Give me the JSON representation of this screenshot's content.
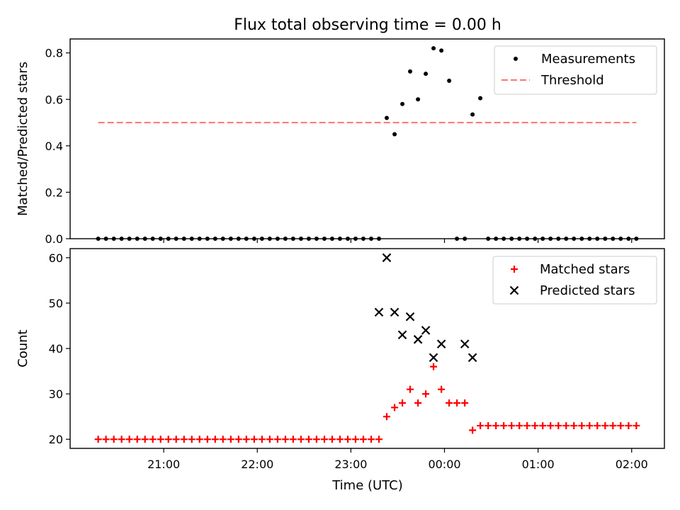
{
  "title": "Flux total observing time = 0.00 h",
  "xlabel": "Time (UTC)",
  "chart_data": [
    {
      "type": "scatter",
      "ylabel": "Matched/Predicted stars",
      "ylim": [
        0,
        0.86
      ],
      "yticks": [
        0.0,
        0.2,
        0.4,
        0.6,
        0.8
      ],
      "ytick_labels": [
        "0.0",
        "0.2",
        "0.4",
        "0.6",
        "0.8"
      ],
      "x_unit": "hours since 21:00 UTC (display only)",
      "xlim": [
        -1.0,
        5.35
      ],
      "legend": {
        "position": "top-right"
      },
      "series": [
        {
          "name": "Measurements",
          "style": "dot",
          "color": "#000000",
          "x": [
            -0.7,
            -0.617,
            -0.533,
            -0.45,
            -0.367,
            -0.283,
            -0.2,
            -0.117,
            -0.033,
            0.05,
            0.133,
            0.217,
            0.3,
            0.383,
            0.467,
            0.55,
            0.633,
            0.717,
            0.8,
            0.883,
            0.967,
            1.05,
            1.133,
            1.217,
            1.3,
            1.383,
            1.467,
            1.55,
            1.633,
            1.717,
            1.8,
            1.883,
            1.967,
            2.05,
            2.133,
            2.217,
            2.3,
            2.383,
            2.467,
            2.55,
            2.633,
            2.717,
            2.8,
            2.883,
            2.967,
            3.05,
            3.133,
            3.217,
            3.3,
            3.383,
            3.467,
            3.55,
            3.633,
            3.717,
            3.8,
            3.883,
            3.967,
            4.05,
            4.133,
            4.217,
            4.3,
            4.383,
            4.467,
            4.55,
            4.633,
            4.717,
            4.8,
            4.883,
            4.967,
            5.05
          ],
          "y": [
            0,
            0,
            0,
            0,
            0,
            0,
            0,
            0,
            0,
            0,
            0,
            0,
            0,
            0,
            0,
            0,
            0,
            0,
            0,
            0,
            0,
            0,
            0,
            0,
            0,
            0,
            0,
            0,
            0,
            0,
            0,
            0,
            0,
            0,
            0,
            0,
            0,
            0.52,
            0.45,
            0.58,
            0.72,
            0.6,
            0.71,
            0.82,
            0.81,
            0.68,
            0,
            0,
            0.535,
            0.605,
            0,
            0,
            0,
            0,
            0,
            0,
            0,
            0,
            0,
            0,
            0,
            0,
            0,
            0,
            0,
            0,
            0,
            0,
            0,
            0
          ]
        },
        {
          "name": "Threshold",
          "style": "dashed-line",
          "color": "#ff7a7a",
          "x": [
            -0.7,
            5.05
          ],
          "y": [
            0.5,
            0.5
          ]
        }
      ]
    },
    {
      "type": "scatter",
      "ylabel": "Count",
      "ylim": [
        18,
        62
      ],
      "yticks": [
        20,
        30,
        40,
        50,
        60
      ],
      "ytick_labels": [
        "20",
        "30",
        "40",
        "50",
        "60"
      ],
      "xticks": [
        0,
        1,
        2,
        3,
        4,
        5
      ],
      "xtick_labels": [
        "21:00",
        "22:00",
        "23:00",
        "00:00",
        "01:00",
        "02:00"
      ],
      "xlim": [
        -1.0,
        5.35
      ],
      "legend": {
        "position": "top-right"
      },
      "series": [
        {
          "name": "Matched stars",
          "style": "plus",
          "color": "#ff0000",
          "x": [
            -0.7,
            -0.617,
            -0.533,
            -0.45,
            -0.367,
            -0.283,
            -0.2,
            -0.117,
            -0.033,
            0.05,
            0.133,
            0.217,
            0.3,
            0.383,
            0.467,
            0.55,
            0.633,
            0.717,
            0.8,
            0.883,
            0.967,
            1.05,
            1.133,
            1.217,
            1.3,
            1.383,
            1.467,
            1.55,
            1.633,
            1.717,
            1.8,
            1.883,
            1.967,
            2.05,
            2.133,
            2.217,
            2.3,
            2.383,
            2.467,
            2.55,
            2.633,
            2.717,
            2.8,
            2.883,
            2.967,
            3.05,
            3.133,
            3.217,
            3.3,
            3.383,
            3.467,
            3.55,
            3.633,
            3.717,
            3.8,
            3.883,
            3.967,
            4.05,
            4.133,
            4.217,
            4.3,
            4.383,
            4.467,
            4.55,
            4.633,
            4.717,
            4.8,
            4.883,
            4.967,
            5.05
          ],
          "y": [
            20,
            20,
            20,
            20,
            20,
            20,
            20,
            20,
            20,
            20,
            20,
            20,
            20,
            20,
            20,
            20,
            20,
            20,
            20,
            20,
            20,
            20,
            20,
            20,
            20,
            20,
            20,
            20,
            20,
            20,
            20,
            20,
            20,
            20,
            20,
            20,
            20,
            25,
            27,
            28,
            31,
            28,
            30,
            36,
            31,
            28,
            28,
            28,
            22,
            23,
            23,
            23,
            23,
            23,
            23,
            23,
            23,
            23,
            23,
            23,
            23,
            23,
            23,
            23,
            23,
            23,
            23,
            23,
            23,
            23
          ]
        },
        {
          "name": "Predicted stars",
          "style": "x",
          "color": "#000000",
          "x": [
            2.3,
            2.383,
            2.467,
            2.55,
            2.633,
            2.717,
            2.8,
            2.883,
            2.967,
            3.217,
            3.3
          ],
          "y": [
            48,
            60,
            48,
            43,
            47,
            42,
            44,
            38,
            41,
            41,
            38
          ]
        }
      ]
    }
  ]
}
